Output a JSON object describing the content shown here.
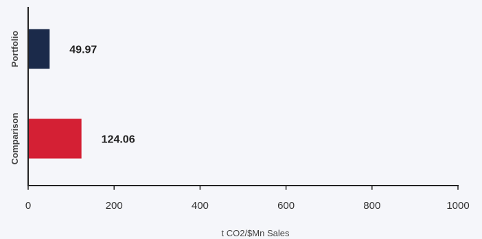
{
  "chart_data": {
    "type": "bar",
    "orientation": "horizontal",
    "categories": [
      "Portfolio",
      "Comparison"
    ],
    "values": [
      49.97,
      124.06
    ],
    "value_labels": [
      "49.97",
      "124.06"
    ],
    "colors": [
      "#1b2a4a",
      "#d42034"
    ],
    "xlabel": "t CO2/$Mn Sales",
    "ylabel": "",
    "xlim": [
      0,
      1000
    ],
    "x_ticks": [
      "0",
      "200",
      "400",
      "600",
      "800",
      "1000"
    ],
    "grid": false,
    "legend": "none"
  }
}
